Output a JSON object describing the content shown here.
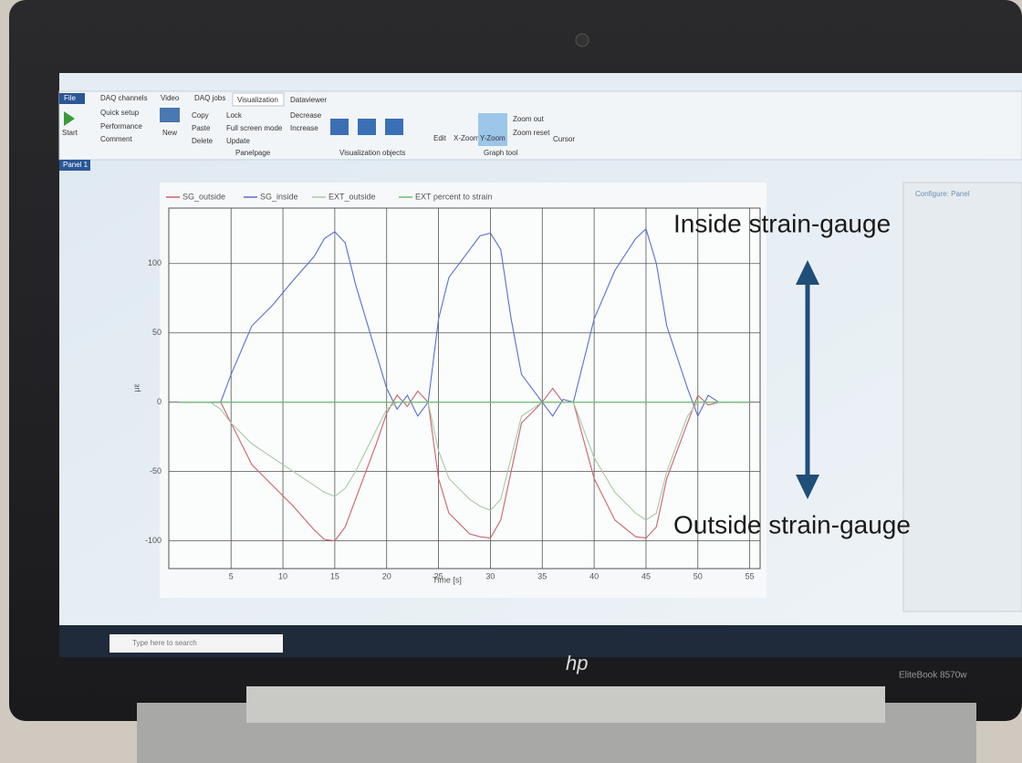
{
  "window": {
    "tabs": [
      "File",
      "DAQ channels",
      "Video",
      "DAQ jobs",
      "Visualization",
      "Dataviewer"
    ],
    "buttons": [
      "Start",
      "Quick setup",
      "Performance",
      "Comment",
      "New",
      "Copy",
      "Paste",
      "Delete",
      "Lock",
      "Full screen mode",
      "Update",
      "Decrease",
      "Increase",
      "Edit",
      "X-Zoom",
      "Y-Zoom",
      "Zoom out",
      "Zoom reset",
      "Cursor"
    ],
    "groups": [
      "Panelpage",
      "Visualization objects",
      "Graph tool"
    ],
    "panel_tab": "Panel 1",
    "side_panel_title": "Configure: Panel"
  },
  "chart_data": {
    "type": "line",
    "x_label": "Time [s]",
    "y_label": "με",
    "x": [
      0,
      3,
      4,
      5,
      7,
      9,
      11,
      13,
      14,
      15,
      16,
      17,
      19,
      20,
      21,
      22,
      23,
      24,
      25,
      26,
      28,
      29,
      30,
      31,
      32,
      33,
      35,
      36,
      37,
      38,
      40,
      42,
      44,
      45,
      46,
      47,
      49,
      50,
      51,
      52,
      53,
      55
    ],
    "series": [
      {
        "name": "SG_outside",
        "color": "#c8646e",
        "values": [
          0,
          0,
          0,
          -15,
          -45,
          -60,
          -75,
          -92,
          -99,
          -100,
          -90,
          -70,
          -30,
          -8,
          5,
          -3,
          8,
          0,
          -55,
          -80,
          -95,
          -97,
          -98,
          -85,
          -50,
          -15,
          0,
          10,
          0,
          0,
          -55,
          -85,
          -97,
          -98,
          -90,
          -55,
          -15,
          5,
          -2,
          0,
          0,
          0
        ]
      },
      {
        "name": "SG_inside",
        "color": "#5a6fd0",
        "values": [
          0,
          0,
          0,
          20,
          55,
          70,
          88,
          105,
          118,
          123,
          115,
          85,
          35,
          10,
          -5,
          5,
          -10,
          0,
          60,
          90,
          110,
          120,
          122,
          110,
          60,
          20,
          0,
          -10,
          2,
          0,
          60,
          95,
          118,
          125,
          100,
          55,
          10,
          -10,
          5,
          0,
          0,
          0
        ]
      },
      {
        "name": "EXT_outside",
        "color": "#a9c9a6",
        "values": [
          0,
          0,
          -5,
          -15,
          -30,
          -40,
          -50,
          -60,
          -65,
          -68,
          -62,
          -50,
          -20,
          -5,
          0,
          0,
          0,
          0,
          -35,
          -55,
          -70,
          -75,
          -78,
          -70,
          -40,
          -10,
          0,
          0,
          0,
          0,
          -40,
          -65,
          -80,
          -85,
          -80,
          -50,
          -10,
          0,
          0,
          0,
          0,
          0
        ]
      },
      {
        "name": "EXT percent to strain",
        "color": "#6cbf6c",
        "values": [
          0,
          0,
          0,
          0,
          0,
          0,
          0,
          0,
          0,
          0,
          0,
          0,
          0,
          0,
          0,
          0,
          0,
          0,
          0,
          0,
          0,
          0,
          0,
          0,
          0,
          0,
          0,
          0,
          0,
          0,
          0,
          0,
          0,
          0,
          0,
          0,
          0,
          0,
          0,
          0,
          0,
          0
        ]
      }
    ],
    "xlim": [
      -1,
      56
    ],
    "xticks": [
      5,
      10,
      15,
      20,
      25,
      30,
      35,
      40,
      45,
      50,
      55
    ],
    "ylim": [
      -120,
      140
    ],
    "yticks": [
      -100,
      -50,
      0,
      50,
      100
    ],
    "grid": true
  },
  "annotations": {
    "inside": "Inside strain-gauge",
    "outside": "Outside strain-gauge"
  },
  "taskbar": {
    "search": "Type here to search"
  },
  "laptop": {
    "brand": "hp",
    "model": "EliteBook 8570w"
  }
}
